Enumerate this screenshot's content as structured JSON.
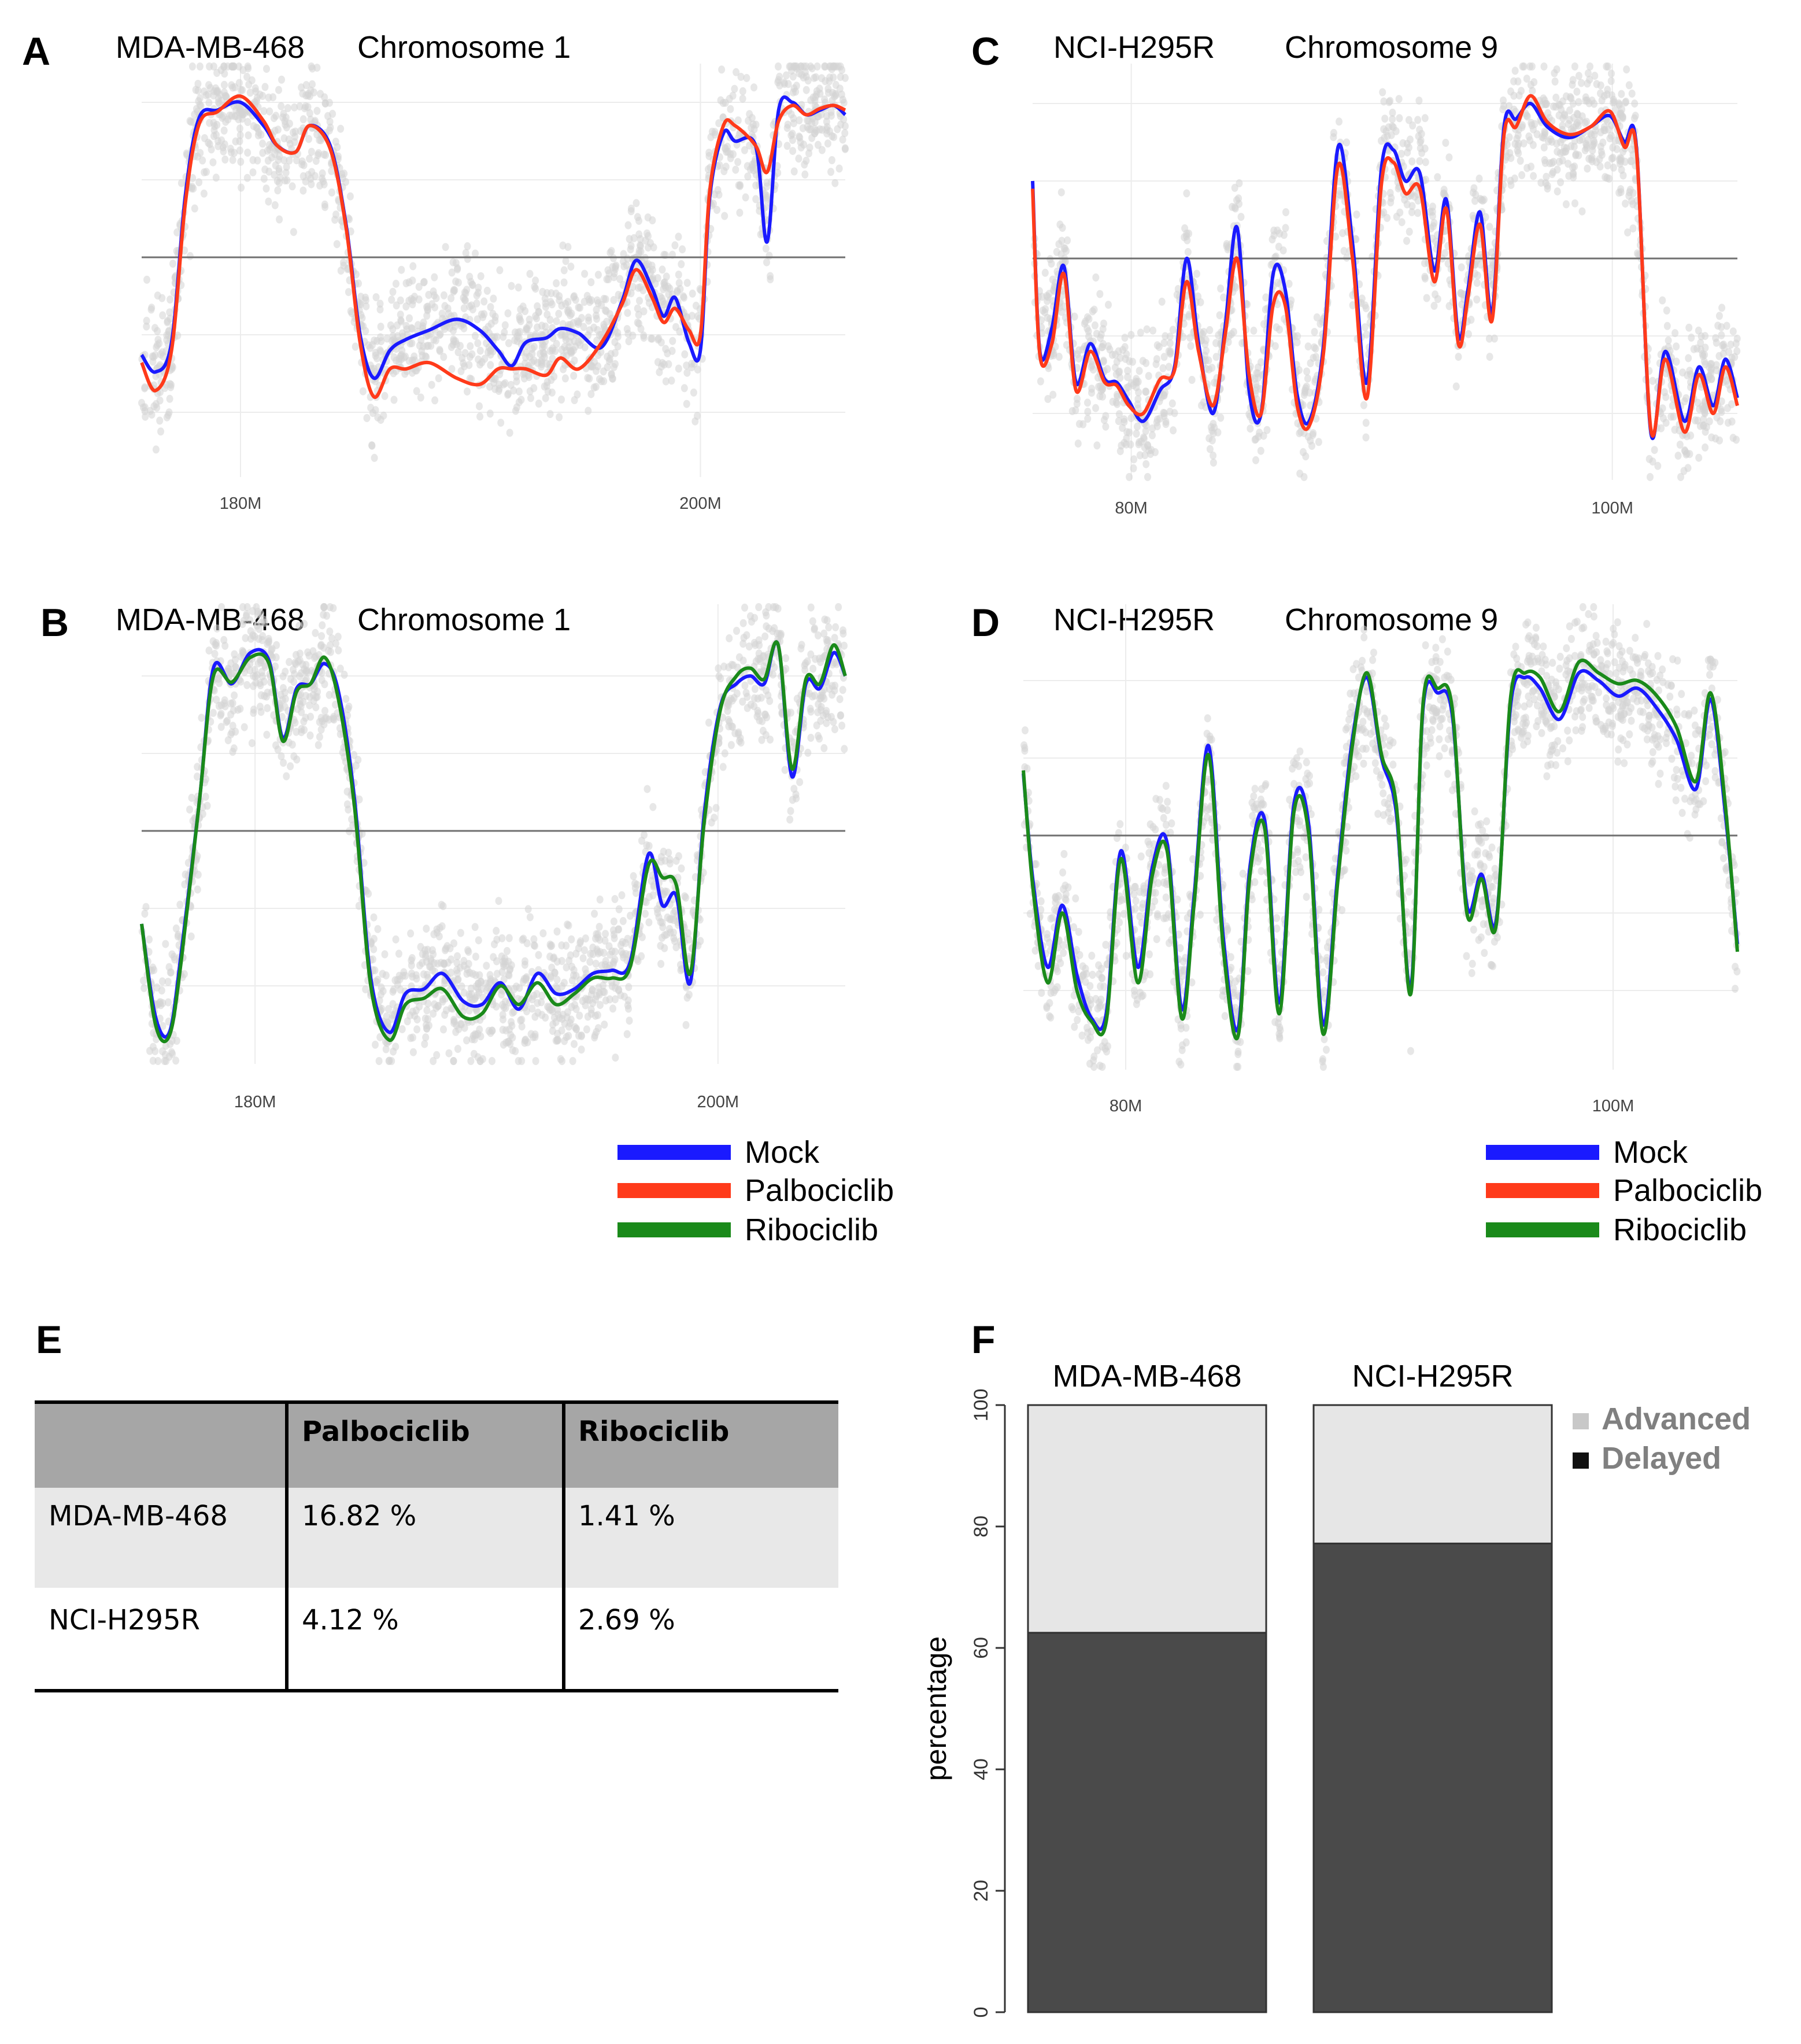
{
  "panels": {
    "A": {
      "label": "A",
      "cell_line": "MDA-MB-468",
      "chromosome": "Chromosome 1"
    },
    "B": {
      "label": "B",
      "cell_line": "MDA-MB-468",
      "chromosome": "Chromosome 1"
    },
    "C": {
      "label": "C",
      "cell_line": "NCI-H295R",
      "chromosome": "Chromosome 9"
    },
    "D": {
      "label": "D",
      "cell_line": "NCI-H295R",
      "chromosome": "Chromosome 9"
    },
    "E": {
      "label": "E"
    },
    "F": {
      "label": "F"
    }
  },
  "legend": {
    "entries": [
      {
        "name": "Mock",
        "color": "#1a1aff"
      },
      {
        "name": "Palbociclib",
        "color": "#ff3a1a"
      },
      {
        "name": "Ribociclib",
        "color": "#1a8a1a"
      }
    ]
  },
  "table": {
    "columns": [
      "",
      "Palbociclib",
      "Ribociclib"
    ],
    "rows": [
      {
        "cells": [
          "MDA-MB-468",
          "16.82 %",
          "1.41 %"
        ]
      },
      {
        "cells": [
          "NCI-H295R",
          "4.12 %",
          "2.69 %"
        ]
      }
    ]
  },
  "chart_data": [
    {
      "panel": "A",
      "type": "line",
      "x_ticks": [
        "180M",
        "200M"
      ],
      "x_tick_values": [
        180,
        200
      ],
      "xlim": [
        175.7,
        206.3
      ],
      "ylim": [
        -1.32,
        1.3
      ],
      "baseline": 0,
      "series": [
        {
          "name": "Mock",
          "color": "#1a1aff",
          "x": [
            175.7,
            176.3,
            177.0,
            177.6,
            178.2,
            179.0,
            180.0,
            181.0,
            181.6,
            182.4,
            183.0,
            183.9,
            184.6,
            185.2,
            185.8,
            186.5,
            187.2,
            188.2,
            189.4,
            190.4,
            191.2,
            191.8,
            192.4,
            193.3,
            193.9,
            194.7,
            195.7,
            196.6,
            197.2,
            197.9,
            198.4,
            198.9,
            199.5,
            200.0,
            200.4,
            201.0,
            201.5,
            202.4,
            202.9,
            203.4,
            204.0,
            204.6,
            205.2,
            205.8,
            206.3
          ],
          "y": [
            -0.63,
            -0.74,
            -0.55,
            0.4,
            0.9,
            0.95,
            1.0,
            0.85,
            0.72,
            0.68,
            0.85,
            0.72,
            0.2,
            -0.5,
            -0.78,
            -0.6,
            -0.53,
            -0.47,
            -0.4,
            -0.47,
            -0.6,
            -0.7,
            -0.55,
            -0.52,
            -0.46,
            -0.49,
            -0.58,
            -0.28,
            -0.02,
            -0.2,
            -0.38,
            -0.26,
            -0.55,
            -0.6,
            0.38,
            0.8,
            0.75,
            0.72,
            0.1,
            0.95,
            1.0,
            0.92,
            0.95,
            0.98,
            0.92
          ]
        },
        {
          "name": "Palbociclib",
          "color": "#ff3a1a",
          "x": [
            175.7,
            176.3,
            177.0,
            177.6,
            178.2,
            179.0,
            180.0,
            181.0,
            181.6,
            182.4,
            183.0,
            183.9,
            184.6,
            185.2,
            185.8,
            186.5,
            187.2,
            188.2,
            189.4,
            190.4,
            191.2,
            191.8,
            192.4,
            193.3,
            193.9,
            194.7,
            195.7,
            196.6,
            197.2,
            197.9,
            198.4,
            198.9,
            199.5,
            200.0,
            200.4,
            201.0,
            201.5,
            202.4,
            202.9,
            203.4,
            204.0,
            204.6,
            205.2,
            205.8,
            206.3
          ],
          "y": [
            -0.68,
            -0.86,
            -0.6,
            0.35,
            0.86,
            0.94,
            1.04,
            0.88,
            0.72,
            0.68,
            0.85,
            0.7,
            0.18,
            -0.55,
            -0.9,
            -0.72,
            -0.72,
            -0.68,
            -0.78,
            -0.82,
            -0.72,
            -0.72,
            -0.72,
            -0.76,
            -0.65,
            -0.72,
            -0.55,
            -0.3,
            -0.08,
            -0.26,
            -0.42,
            -0.33,
            -0.47,
            -0.5,
            0.42,
            0.85,
            0.85,
            0.72,
            0.55,
            0.88,
            0.98,
            0.92,
            0.96,
            0.98,
            0.95
          ]
        }
      ]
    },
    {
      "panel": "B",
      "type": "line",
      "x_ticks": [
        "180M",
        "200M"
      ],
      "x_tick_values": [
        180,
        200
      ],
      "xlim": [
        175.1,
        205.5
      ],
      "ylim": [
        -1.32,
        1.3
      ],
      "baseline": 0,
      "series": [
        {
          "name": "Mock",
          "color": "#1a1aff",
          "x": [
            175.1,
            175.7,
            176.3,
            176.8,
            177.6,
            178.2,
            179.0,
            179.8,
            180.6,
            181.2,
            181.8,
            182.4,
            183.0,
            183.6,
            184.3,
            185.0,
            185.8,
            186.5,
            187.3,
            188.1,
            189.0,
            189.8,
            190.6,
            191.4,
            192.2,
            193.0,
            193.8,
            194.6,
            195.4,
            196.2,
            197.0,
            197.6,
            198.2,
            198.8,
            199.4,
            200.1,
            200.8,
            201.4,
            202.0,
            202.6,
            203.2,
            203.8,
            204.4,
            205.0,
            205.5
          ],
          "y": [
            -0.6,
            -1.2,
            -1.3,
            -0.8,
            0.2,
            1.05,
            0.95,
            1.15,
            1.1,
            0.6,
            0.92,
            0.95,
            1.08,
            0.9,
            0.2,
            -0.95,
            -1.3,
            -1.05,
            -1.02,
            -0.92,
            -1.1,
            -1.12,
            -0.98,
            -1.15,
            -0.92,
            -1.05,
            -1.02,
            -0.92,
            -0.9,
            -0.85,
            -0.15,
            -0.48,
            -0.42,
            -0.98,
            0.1,
            0.8,
            0.95,
            1.0,
            0.95,
            1.2,
            0.35,
            0.95,
            0.92,
            1.15,
            1.0
          ]
        },
        {
          "name": "Ribociclib",
          "color": "#1a8a1a",
          "x": [
            175.1,
            175.7,
            176.3,
            176.8,
            177.6,
            178.2,
            179.0,
            179.8,
            180.6,
            181.2,
            181.8,
            182.4,
            183.0,
            183.6,
            184.3,
            185.0,
            185.8,
            186.5,
            187.3,
            188.1,
            189.0,
            189.8,
            190.6,
            191.4,
            192.2,
            193.0,
            193.8,
            194.6,
            195.4,
            196.2,
            197.0,
            197.6,
            198.2,
            198.8,
            199.4,
            200.1,
            200.8,
            201.4,
            202.0,
            202.6,
            203.2,
            203.8,
            204.4,
            205.0,
            205.5
          ],
          "y": [
            -0.6,
            -1.25,
            -1.32,
            -0.85,
            0.2,
            1.0,
            0.96,
            1.12,
            1.08,
            0.58,
            0.9,
            0.95,
            1.12,
            0.85,
            0.15,
            -1.0,
            -1.35,
            -1.12,
            -1.08,
            -1.02,
            -1.2,
            -1.18,
            -1.0,
            -1.12,
            -0.98,
            -1.12,
            -1.05,
            -0.95,
            -0.95,
            -0.88,
            -0.22,
            -0.3,
            -0.35,
            -0.92,
            0.05,
            0.78,
            1.0,
            1.05,
            0.98,
            1.2,
            0.4,
            0.98,
            0.95,
            1.2,
            1.0
          ]
        }
      ]
    },
    {
      "panel": "C",
      "type": "line",
      "x_ticks": [
        "80M",
        "100M"
      ],
      "x_tick_values": [
        80,
        100
      ],
      "xlim": [
        75.9,
        105.2
      ],
      "ylim": [
        -1.32,
        1.3
      ],
      "baseline": 0,
      "series": [
        {
          "name": "Mock",
          "color": "#1a1aff",
          "x": [
            75.9,
            76.2,
            76.7,
            77.2,
            77.7,
            78.3,
            78.9,
            79.4,
            79.9,
            80.5,
            81.2,
            81.8,
            82.3,
            82.8,
            83.4,
            83.9,
            84.4,
            84.9,
            85.4,
            85.9,
            86.4,
            86.9,
            87.4,
            88.0,
            88.6,
            89.2,
            89.8,
            90.4,
            90.9,
            91.4,
            92.0,
            92.6,
            93.1,
            93.6,
            94.0,
            94.5,
            95.0,
            95.5,
            96.0,
            96.6,
            97.3,
            98.2,
            99.1,
            99.9,
            100.5,
            101.0,
            101.6,
            102.2,
            103.0,
            103.6,
            104.2,
            104.7,
            105.2
          ],
          "y": [
            0.5,
            -0.6,
            -0.45,
            -0.05,
            -0.8,
            -0.55,
            -0.78,
            -0.8,
            -0.92,
            -1.05,
            -0.85,
            -0.7,
            0.0,
            -0.55,
            -1.0,
            -0.45,
            0.2,
            -0.85,
            -1.0,
            -0.1,
            -0.2,
            -0.88,
            -1.05,
            -0.55,
            0.72,
            0.1,
            -0.8,
            0.58,
            0.7,
            0.5,
            0.55,
            -0.08,
            0.38,
            -0.5,
            -0.2,
            0.3,
            -0.35,
            0.85,
            0.9,
            1.0,
            0.85,
            0.78,
            0.85,
            0.92,
            0.75,
            0.72,
            -1.12,
            -0.6,
            -1.05,
            -0.7,
            -0.95,
            -0.65,
            -0.9
          ]
        },
        {
          "name": "Palbociclib",
          "color": "#ff3a1a",
          "x": [
            75.9,
            76.2,
            76.7,
            77.2,
            77.7,
            78.3,
            78.9,
            79.4,
            79.9,
            80.5,
            81.2,
            81.8,
            82.3,
            82.8,
            83.4,
            83.9,
            84.4,
            84.9,
            85.4,
            85.9,
            86.4,
            86.9,
            87.4,
            88.0,
            88.6,
            89.2,
            89.8,
            90.4,
            90.9,
            91.4,
            92.0,
            92.6,
            93.1,
            93.6,
            94.0,
            94.5,
            95.0,
            95.5,
            96.0,
            96.6,
            97.3,
            98.2,
            99.1,
            99.9,
            100.5,
            101.0,
            101.6,
            102.2,
            103.0,
            103.6,
            104.2,
            104.7,
            105.2
          ],
          "y": [
            0.45,
            -0.62,
            -0.55,
            -0.1,
            -0.85,
            -0.6,
            -0.8,
            -0.82,
            -0.95,
            -1.0,
            -0.78,
            -0.72,
            -0.15,
            -0.6,
            -0.95,
            -0.5,
            0.0,
            -0.75,
            -1.0,
            -0.3,
            -0.3,
            -0.95,
            -1.08,
            -0.6,
            0.6,
            0.0,
            -0.9,
            0.48,
            0.62,
            0.42,
            0.45,
            -0.15,
            0.32,
            -0.55,
            -0.25,
            0.22,
            -0.4,
            0.8,
            0.85,
            1.05,
            0.88,
            0.8,
            0.85,
            0.95,
            0.72,
            0.7,
            -1.1,
            -0.65,
            -1.12,
            -0.75,
            -1.0,
            -0.7,
            -0.95
          ]
        }
      ]
    },
    {
      "panel": "D",
      "type": "line",
      "x_ticks": [
        "80M",
        "100M"
      ],
      "x_tick_values": [
        80,
        100
      ],
      "xlim": [
        75.8,
        105.1
      ],
      "ylim": [
        -1.32,
        1.3
      ],
      "baseline": 0,
      "series": [
        {
          "name": "Mock",
          "color": "#1a1aff",
          "x": [
            75.8,
            76.2,
            76.8,
            77.4,
            78.0,
            78.6,
            79.2,
            79.8,
            80.5,
            81.1,
            81.7,
            82.3,
            82.8,
            83.4,
            84.0,
            84.6,
            85.1,
            85.7,
            86.3,
            86.9,
            87.5,
            88.1,
            88.7,
            89.3,
            89.9,
            90.5,
            91.1,
            91.7,
            92.2,
            92.8,
            93.4,
            94.0,
            94.6,
            95.2,
            95.8,
            96.4,
            97.0,
            97.8,
            98.6,
            99.4,
            100.2,
            101.0,
            101.8,
            102.6,
            103.4,
            104.0,
            104.6,
            105.1
          ],
          "y": [
            0.4,
            -0.3,
            -0.85,
            -0.45,
            -0.9,
            -1.18,
            -1.15,
            -0.1,
            -0.85,
            -0.2,
            -0.05,
            -1.12,
            -0.4,
            0.58,
            -0.65,
            -1.25,
            -0.2,
            0.1,
            -1.08,
            0.2,
            0.08,
            -1.22,
            -0.25,
            0.62,
            1.02,
            0.5,
            0.15,
            -0.98,
            0.82,
            0.92,
            0.78,
            -0.45,
            -0.25,
            -0.55,
            0.85,
            1.02,
            0.95,
            0.75,
            1.05,
            1.0,
            0.9,
            0.95,
            0.82,
            0.62,
            0.3,
            0.88,
            0.15,
            -0.7
          ]
        },
        {
          "name": "Ribociclib",
          "color": "#1a8a1a",
          "x": [
            75.8,
            76.2,
            76.8,
            77.4,
            78.0,
            78.6,
            79.2,
            79.8,
            80.5,
            81.1,
            81.7,
            82.3,
            82.8,
            83.4,
            84.0,
            84.6,
            85.1,
            85.7,
            86.3,
            86.9,
            87.5,
            88.1,
            88.7,
            89.3,
            89.9,
            90.5,
            91.1,
            91.7,
            92.2,
            92.8,
            93.4,
            94.0,
            94.6,
            95.2,
            95.8,
            96.4,
            97.0,
            97.8,
            98.6,
            99.4,
            100.2,
            101.0,
            101.8,
            102.6,
            103.4,
            104.0,
            104.6,
            105.1
          ],
          "y": [
            0.42,
            -0.35,
            -0.95,
            -0.5,
            -1.0,
            -1.2,
            -1.2,
            -0.15,
            -0.95,
            -0.25,
            -0.1,
            -1.18,
            -0.45,
            0.52,
            -0.72,
            -1.3,
            -0.25,
            0.05,
            -1.15,
            0.15,
            0.02,
            -1.28,
            -0.3,
            0.58,
            1.05,
            0.52,
            0.2,
            -1.02,
            0.85,
            0.95,
            0.82,
            -0.5,
            -0.28,
            -0.58,
            0.9,
            1.05,
            1.02,
            0.8,
            1.12,
            1.05,
            0.98,
            1.0,
            0.9,
            0.7,
            0.35,
            0.92,
            0.2,
            -0.75
          ]
        }
      ]
    },
    {
      "panel": "F",
      "type": "bar",
      "stacked": true,
      "categories": [
        "MDA-MB-468",
        "NCI-H295R"
      ],
      "ylabel": "percentage",
      "ylim": [
        0,
        100
      ],
      "y_ticks": [
        0,
        20,
        40,
        60,
        80,
        100
      ],
      "series": [
        {
          "name": "Delayed",
          "color": "#4a4a4a",
          "values": [
            62.5,
            77.2
          ]
        },
        {
          "name": "Advanced",
          "color": "#e6e6e6",
          "values": [
            37.5,
            22.8
          ]
        }
      ],
      "legend_position": "top-right"
    }
  ]
}
